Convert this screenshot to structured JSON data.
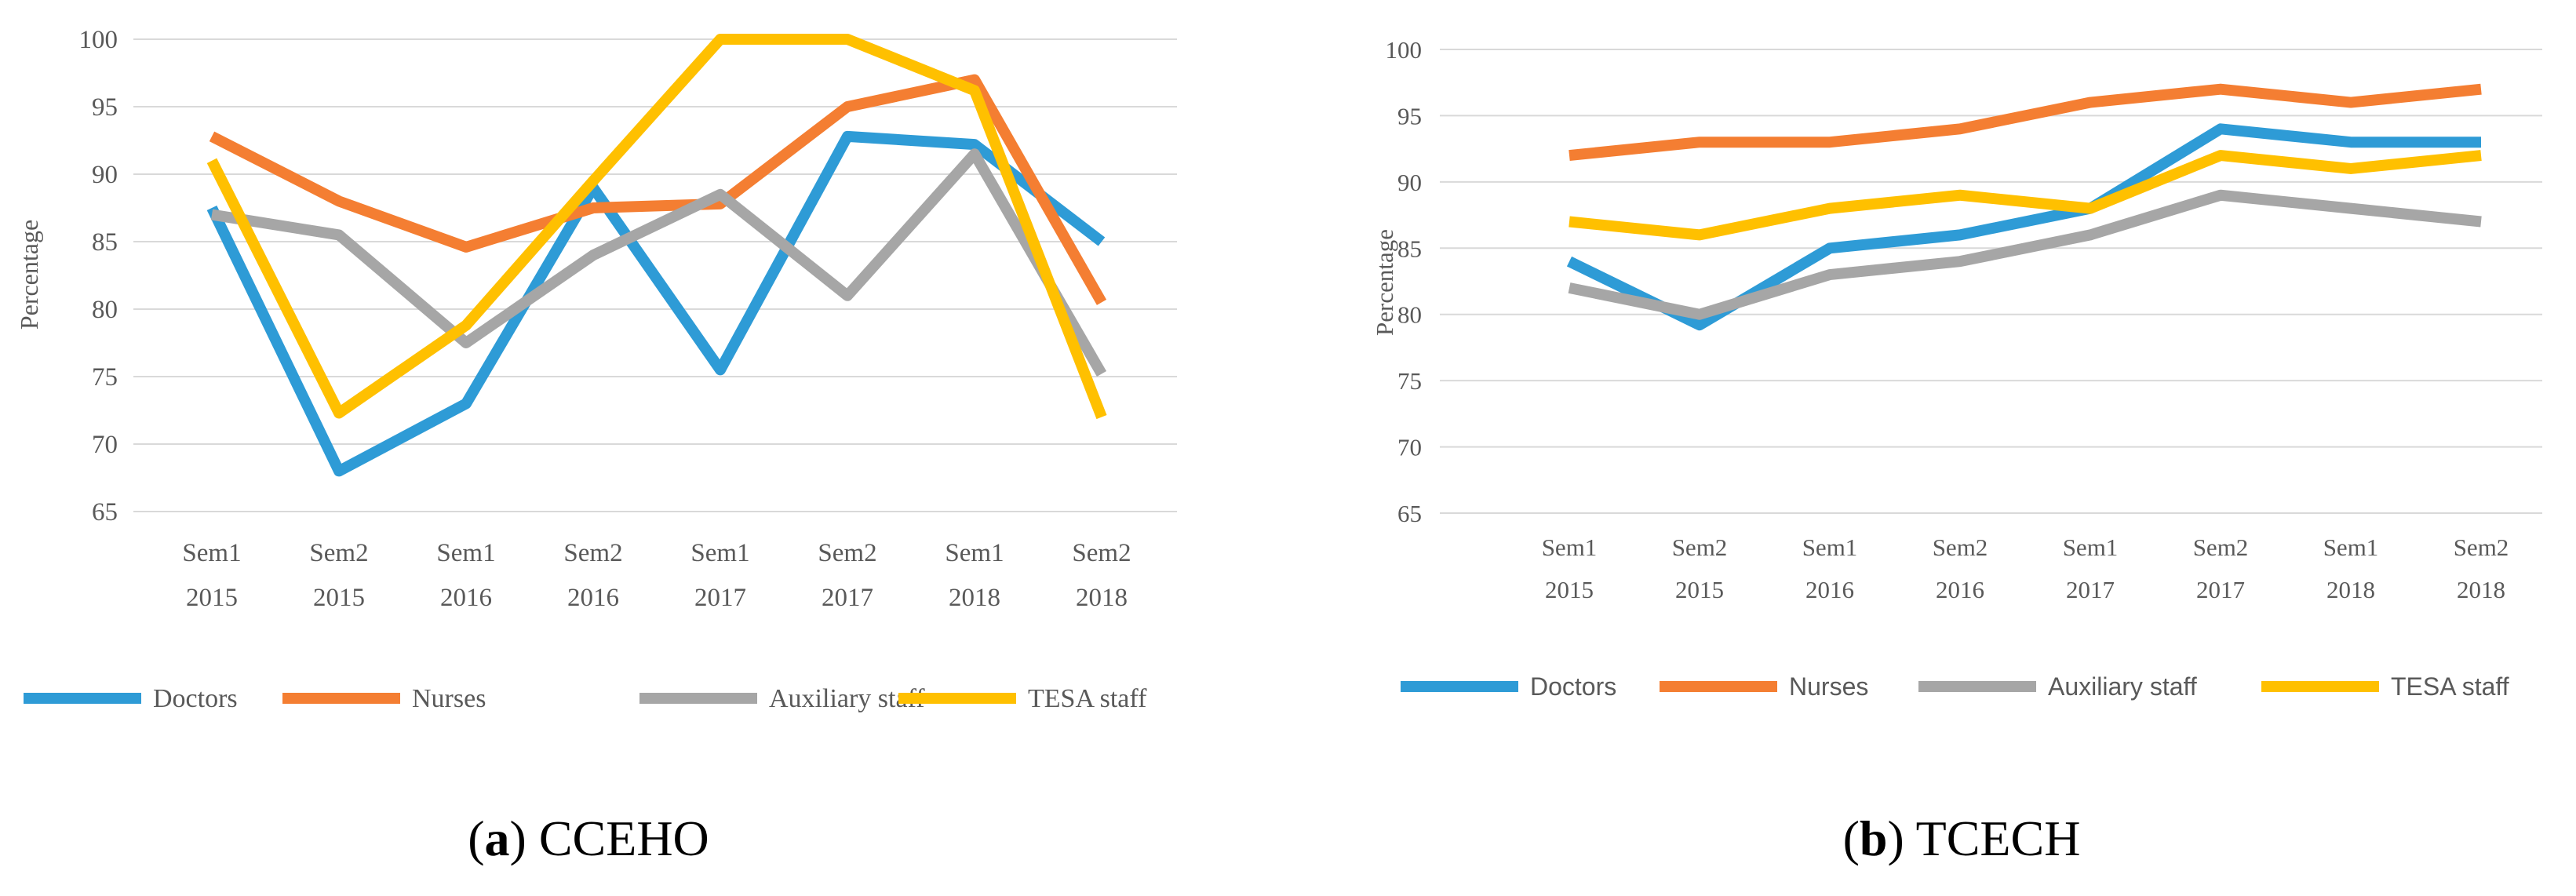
{
  "colors": {
    "Doctors": "#2E9BD6",
    "Nurses": "#F47E32",
    "Auxiliary staff": "#A6A6A6",
    "TESA staff": "#FFC000",
    "gridline": "#D9D9D9",
    "text": "#595959"
  },
  "chart_data": [
    {
      "type": "line",
      "caption_letter": "a",
      "caption_rest": ") CCEHO",
      "ylabel": "Percentage",
      "ylim": [
        65,
        100
      ],
      "yticks": [
        65,
        70,
        75,
        80,
        85,
        90,
        95,
        100
      ],
      "grid": true,
      "legend_position": "bottom",
      "categories": [
        [
          "Sem1",
          "2015"
        ],
        [
          "Sem2",
          "2015"
        ],
        [
          "Sem1",
          "2016"
        ],
        [
          "Sem2",
          "2016"
        ],
        [
          "Sem1",
          "2017"
        ],
        [
          "Sem2",
          "2017"
        ],
        [
          "Sem1",
          "2018"
        ],
        [
          "Sem2",
          "2018"
        ]
      ],
      "series": [
        {
          "name": "Doctors",
          "values": [
            87.5,
            68,
            73,
            89,
            75.5,
            92.8,
            92.2,
            85
          ]
        },
        {
          "name": "Nurses",
          "values": [
            92.8,
            88,
            84.6,
            87.5,
            87.8,
            95,
            97,
            80.5
          ]
        },
        {
          "name": "Auxiliary staff",
          "values": [
            87,
            85.5,
            77.5,
            84,
            88.5,
            81,
            91.5,
            75.2
          ]
        },
        {
          "name": "TESA staff",
          "values": [
            91,
            72.3,
            78.8,
            89.5,
            100,
            100,
            96.2,
            72
          ]
        }
      ]
    },
    {
      "type": "line",
      "caption_letter": "b",
      "caption_rest": ") TCECH",
      "ylabel": "Percentage",
      "ylim": [
        65,
        100
      ],
      "yticks": [
        65,
        70,
        75,
        80,
        85,
        90,
        95,
        100
      ],
      "grid": true,
      "legend_position": "bottom",
      "categories": [
        [
          "Sem1",
          "2015"
        ],
        [
          "Sem2",
          "2015"
        ],
        [
          "Sem1",
          "2016"
        ],
        [
          "Sem2",
          "2016"
        ],
        [
          "Sem1",
          "2017"
        ],
        [
          "Sem2",
          "2017"
        ],
        [
          "Sem1",
          "2018"
        ],
        [
          "Sem2",
          "2018"
        ]
      ],
      "series": [
        {
          "name": "Doctors",
          "values": [
            84,
            79.2,
            85,
            86,
            88,
            94,
            93,
            93
          ]
        },
        {
          "name": "Nurses",
          "values": [
            92,
            93,
            93,
            94,
            96,
            97,
            96,
            97
          ]
        },
        {
          "name": "Auxiliary staff",
          "values": [
            82,
            80,
            83,
            84,
            86,
            89,
            88,
            87
          ]
        },
        {
          "name": "TESA staff",
          "values": [
            87,
            86,
            88,
            89,
            88,
            92,
            91,
            92
          ]
        }
      ]
    }
  ]
}
